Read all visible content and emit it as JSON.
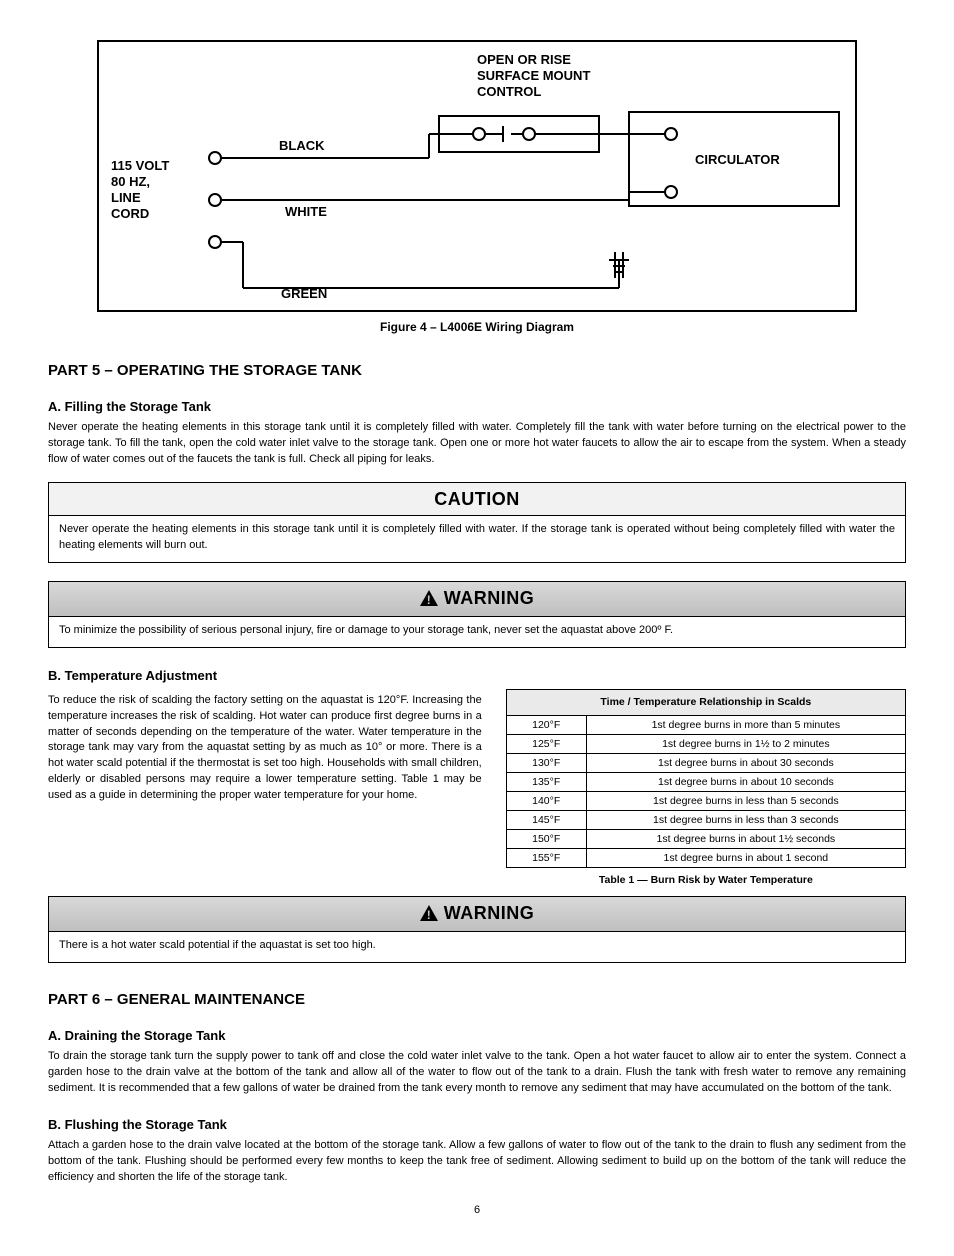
{
  "diagram": {
    "title_lines": [
      "OPEN OR RISE",
      "SURFACE MOUNT",
      "CONTROL"
    ],
    "linecord_lines": [
      "115 VOLT",
      "80 HZ,",
      "LINE",
      "CORD"
    ],
    "circulator": "CIRCULATOR",
    "wire_black": "BLACK",
    "wire_white": "WHITE",
    "wire_green": "GREEN",
    "caption": "Figure 4 – L4006E Wiring Diagram",
    "colors": {
      "border": "#000000",
      "text": "#000000",
      "bg": "#ffffff"
    }
  },
  "part5": {
    "heading": "PART 5 – OPERATING THE STORAGE TANK",
    "filling_heading": "A. Filling the Storage Tank",
    "filling_text": "Never operate the heating elements in this storage tank until it is completely filled with water. Completely fill the tank with water before turning on the electrical power to the storage tank. To fill the tank, open the cold water inlet valve to the storage tank. Open one or more hot water faucets to allow the air to escape from the system. When a steady flow of water comes out of the faucets the tank is full. Check all piping for leaks."
  },
  "caution": {
    "header": "CAUTION",
    "text": "Never operate the heating elements in this storage tank until it is completely filled with water. If the storage tank is operated without being completely filled with water the heating elements will burn out.",
    "bg": "#f2f2f2"
  },
  "warning1": {
    "header": "WARNING",
    "text": "To minimize the possibility of serious personal injury, fire or damage to your storage tank, never set the aquastat above 200º F.",
    "bg": "#c6c6c6"
  },
  "tempAdjust": {
    "heading": "B. Temperature Adjustment",
    "text": "To reduce the risk of scalding the factory setting on the aquastat is 120°F. Increasing the temperature increases the risk of scalding. Hot water can produce first degree burns in a matter of seconds depending on the temperature of the water. Water temperature in the storage tank may vary from the aquastat setting by as much as 10° or more. There is a hot water scald potential if the thermostat is set too high. Households with small children, elderly or disabled persons may require a lower temperature setting. Table 1 may be used as a guide in determining the proper water temperature for your home."
  },
  "burnTable": {
    "header": "Time / Temperature Relationship in Scalds",
    "rows": [
      {
        "temp": "120°F",
        "effect": "1st degree burns in more than 5 minutes"
      },
      {
        "temp": "125°F",
        "effect": "1st degree burns in 1½ to 2 minutes"
      },
      {
        "temp": "130°F",
        "effect": "1st degree burns in about 30 seconds"
      },
      {
        "temp": "135°F",
        "effect": "1st degree burns in about 10 seconds"
      },
      {
        "temp": "140°F",
        "effect": "1st degree burns in less than 5 seconds"
      },
      {
        "temp": "145°F",
        "effect": "1st degree burns in less than 3 seconds"
      },
      {
        "temp": "150°F",
        "effect": "1st degree burns in about 1½ seconds"
      },
      {
        "temp": "155°F",
        "effect": "1st degree burns in about 1 second"
      }
    ],
    "caption": "Table 1 — Burn Risk by Water Temperature",
    "header_bg": "#eaeaea"
  },
  "warning2": {
    "header": "WARNING",
    "text": "There is a hot water scald potential if the aquastat is set too high."
  },
  "part6": {
    "heading": "PART 6 – GENERAL MAINTENANCE",
    "drain_heading": "A. Draining the Storage Tank",
    "drain_text": "To drain the storage tank turn the supply power to tank off and close the cold water inlet valve to the tank. Open a hot water faucet to allow air to enter the system. Connect a garden hose to the drain valve at the bottom of the tank and allow all of the water to flow out of the tank to a drain. Flush the tank with fresh water to remove any remaining sediment. It is recommended that a few gallons of water be drained from the tank every month to remove any sediment that may have accumulated on the bottom of the tank.",
    "flush_heading": "B. Flushing the Storage Tank",
    "flush_text": "Attach a garden hose to the drain valve located at the bottom of the storage tank. Allow a few gallons of water to flow out of the tank to the drain to flush any sediment from the bottom of the tank. Flushing should be performed every few months to keep the tank free of sediment. Allowing sediment to build up on the bottom of the tank will reduce the efficiency and shorten the life of the storage tank."
  },
  "page_number": "6",
  "style": {
    "page_bg": "#ffffff",
    "text_color": "#000000",
    "title_fontsize": 15,
    "body_fontsize": 11,
    "box_header_fontsize": 18
  }
}
